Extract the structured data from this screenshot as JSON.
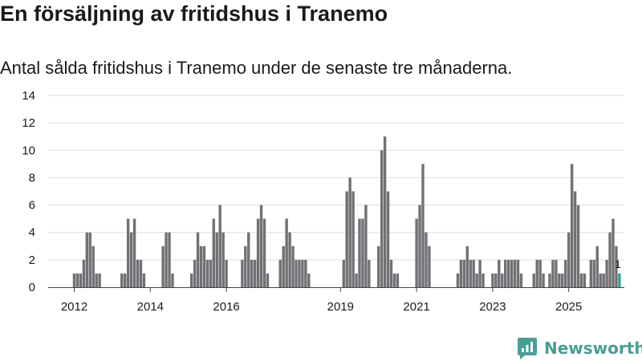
{
  "title": "En försäljning av fritidshus i Tranemo",
  "subtitle": "Antal sålda fritidshus i Tranemo under de senaste tre månaderna.",
  "brand": "Newsworthy",
  "colors": {
    "bar": "#717075",
    "highlight": "#3d9d97",
    "grid": "#dddddd",
    "axis": "#444444",
    "brand": "#4a9d96"
  },
  "chart_data": {
    "type": "bar",
    "xlabel": "",
    "ylabel": "",
    "ylim": [
      0,
      14
    ],
    "yticks": [
      0,
      2,
      4,
      6,
      8,
      10,
      12,
      14
    ],
    "xticks": [
      {
        "label": "2012",
        "month": "2012-01"
      },
      {
        "label": "2014",
        "month": "2014-01"
      },
      {
        "label": "2016",
        "month": "2016-01"
      },
      {
        "label": "2019",
        "month": "2019-01"
      },
      {
        "label": "2021",
        "month": "2021-01"
      },
      {
        "label": "2023",
        "month": "2023-01"
      },
      {
        "label": "2025",
        "month": "2025-01"
      }
    ],
    "start_month": "2012-01",
    "values": [
      1,
      1,
      1,
      2,
      4,
      4,
      3,
      1,
      1,
      0,
      0,
      0,
      0,
      0,
      0,
      1,
      1,
      5,
      4,
      5,
      2,
      2,
      1,
      0,
      0,
      0,
      0,
      0,
      3,
      4,
      4,
      1,
      0,
      0,
      0,
      0,
      0,
      1,
      2,
      4,
      3,
      3,
      2,
      2,
      5,
      4,
      6,
      4,
      2,
      0,
      0,
      0,
      0,
      2,
      3,
      4,
      2,
      2,
      5,
      6,
      5,
      1,
      0,
      0,
      0,
      2,
      3,
      5,
      4,
      3,
      2,
      2,
      2,
      2,
      1,
      0,
      0,
      0,
      0,
      0,
      0,
      0,
      0,
      0,
      0,
      2,
      7,
      8,
      7,
      1,
      5,
      5,
      6,
      2,
      0,
      0,
      3,
      10,
      11,
      7,
      2,
      1,
      1,
      0,
      0,
      0,
      0,
      0,
      5,
      6,
      9,
      4,
      3,
      0,
      0,
      0,
      0,
      0,
      0,
      0,
      0,
      1,
      2,
      2,
      3,
      2,
      2,
      1,
      2,
      1,
      0,
      0,
      1,
      1,
      2,
      1,
      2,
      2,
      2,
      2,
      2,
      1,
      0,
      0,
      0,
      1,
      2,
      2,
      1,
      0,
      1,
      2,
      2,
      1,
      1,
      2,
      4,
      9,
      7,
      6,
      1,
      1,
      0,
      2,
      2,
      3,
      1,
      1,
      2,
      4,
      5,
      3,
      1
    ],
    "highlight_last": true,
    "annotations": [
      {
        "text": "1",
        "target": "last"
      }
    ]
  }
}
